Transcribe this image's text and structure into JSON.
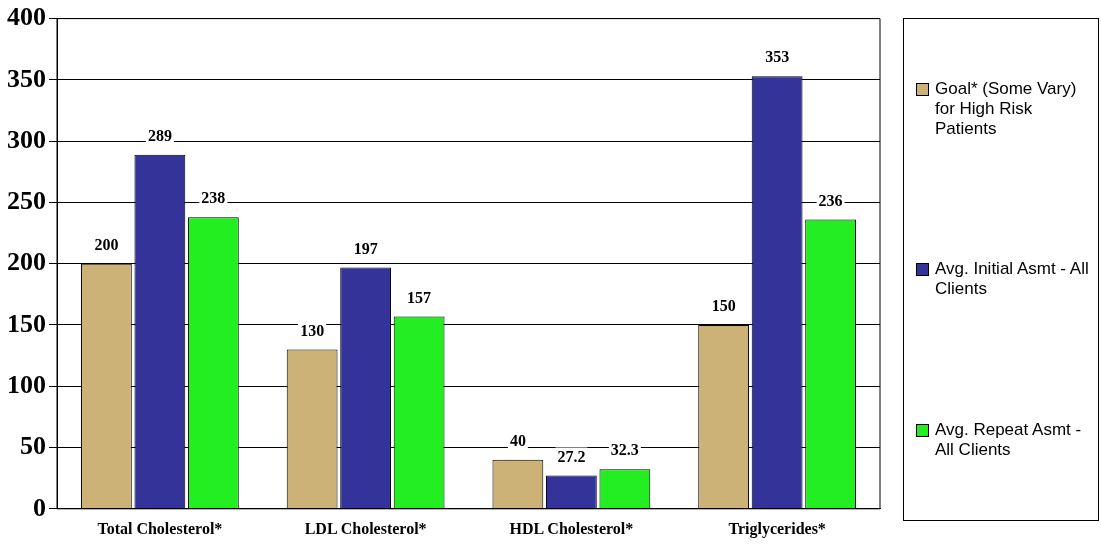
{
  "chart_data": {
    "type": "bar",
    "categories": [
      "Total Cholesterol*",
      "LDL Cholesterol*",
      "HDL Cholesterol*",
      "Triglycerides*"
    ],
    "series": [
      {
        "name": "Goal* (Some Vary) for High Risk Patients",
        "color": "#cdb277",
        "values": [
          200,
          130,
          40,
          150
        ]
      },
      {
        "name": "Avg. Initial Asmt - All Clients",
        "color": "#333399",
        "values": [
          289,
          197,
          27.2,
          353
        ]
      },
      {
        "name": "Avg. Repeat Asmt - All Clients",
        "color": "#22ee22",
        "values": [
          238,
          157,
          32.3,
          236
        ]
      }
    ],
    "ylim": [
      0,
      400
    ],
    "yticks": [
      0,
      50,
      100,
      150,
      200,
      250,
      300,
      350,
      400
    ],
    "grid": "y",
    "legend": "right",
    "data_labels": true
  }
}
